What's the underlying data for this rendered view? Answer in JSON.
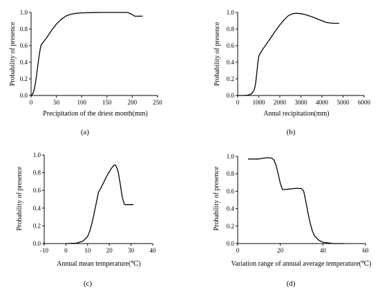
{
  "chart_data": [
    {
      "type": "line",
      "panel_label": "(a)",
      "xlabel": "Precipitation of the driest month(mm)",
      "ylabel": "Probability of presence",
      "xlim": [
        0,
        250
      ],
      "ylim": [
        0,
        1.0
      ],
      "xticks": [
        0,
        50,
        100,
        150,
        200,
        250
      ],
      "yticks": [
        0.0,
        0.2,
        0.4,
        0.6,
        0.8,
        1.0
      ],
      "grid": false,
      "series": [
        {
          "x": [
            0,
            2,
            4,
            6,
            8,
            10,
            12,
            15,
            18,
            20,
            25,
            30,
            40,
            50,
            60,
            70,
            80,
            90,
            100,
            120,
            140,
            160,
            180,
            190,
            195,
            200,
            205,
            210,
            215,
            220
          ],
          "y": [
            0.0,
            0.01,
            0.03,
            0.07,
            0.13,
            0.21,
            0.3,
            0.44,
            0.56,
            0.61,
            0.65,
            0.69,
            0.78,
            0.86,
            0.92,
            0.96,
            0.98,
            0.99,
            0.995,
            0.998,
            1.0,
            1.0,
            1.0,
            1.0,
            0.99,
            0.975,
            0.955,
            0.955,
            0.955,
            0.955
          ]
        }
      ]
    },
    {
      "type": "line",
      "panel_label": "(b)",
      "xlabel": "Annul recipitation(mm)",
      "ylabel": "Probability of presence",
      "xlim": [
        0,
        6000
      ],
      "ylim": [
        0,
        1.0
      ],
      "xticks": [
        0,
        1000,
        2000,
        3000,
        4000,
        5000,
        6000
      ],
      "yticks": [
        0.0,
        0.2,
        0.4,
        0.6,
        0.8,
        1.0
      ],
      "grid": false,
      "series": [
        {
          "x": [
            0,
            300,
            500,
            650,
            750,
            800,
            850,
            900,
            950,
            1000,
            1050,
            1200,
            1500,
            1800,
            2000,
            2200,
            2400,
            2600,
            2800,
            3000,
            3200,
            3500,
            3800,
            4200,
            4500,
            4800
          ],
          "y": [
            0.0,
            0.0,
            0.005,
            0.02,
            0.05,
            0.08,
            0.14,
            0.25,
            0.38,
            0.47,
            0.5,
            0.56,
            0.67,
            0.78,
            0.85,
            0.91,
            0.96,
            0.985,
            0.99,
            0.985,
            0.975,
            0.95,
            0.92,
            0.88,
            0.87,
            0.87
          ]
        }
      ]
    },
    {
      "type": "line",
      "panel_label": "(c)",
      "xlabel": "Annual mean temperature(℃)",
      "ylabel": "Probability of presence",
      "xlim": [
        -10,
        40
      ],
      "ylim": [
        0,
        1.0
      ],
      "xticks": [
        -10,
        0,
        10,
        20,
        30,
        40
      ],
      "yticks": [
        0.0,
        0.2,
        0.4,
        0.6,
        0.8,
        1.0
      ],
      "grid": false,
      "series": [
        {
          "x": [
            0,
            5,
            8,
            10,
            11,
            12,
            13,
            14,
            15,
            16,
            17,
            18,
            19,
            20,
            21,
            22,
            22.5,
            23,
            24,
            25,
            26,
            27,
            28,
            29,
            30,
            31
          ],
          "y": [
            0.0,
            0.005,
            0.03,
            0.08,
            0.14,
            0.23,
            0.34,
            0.46,
            0.58,
            0.62,
            0.67,
            0.72,
            0.77,
            0.81,
            0.85,
            0.88,
            0.89,
            0.88,
            0.82,
            0.68,
            0.52,
            0.44,
            0.44,
            0.44,
            0.44,
            0.44
          ]
        }
      ]
    },
    {
      "type": "line",
      "panel_label": "(d)",
      "xlabel": "Variation range of annual average temperature(℃)",
      "ylabel": "Probability of presence",
      "xlim": [
        0,
        60
      ],
      "ylim": [
        0,
        1.0
      ],
      "xticks": [
        0,
        20,
        40,
        60
      ],
      "yticks": [
        0.0,
        0.2,
        0.4,
        0.6,
        0.8,
        1.0
      ],
      "grid": false,
      "series": [
        {
          "x": [
            5,
            8,
            10,
            12,
            14,
            16,
            17,
            18,
            19,
            20,
            21,
            22,
            24,
            26,
            28,
            30,
            31,
            32,
            33,
            34,
            35,
            36,
            38,
            40,
            45,
            50
          ],
          "y": [
            0.97,
            0.97,
            0.97,
            0.98,
            0.985,
            0.98,
            0.96,
            0.9,
            0.8,
            0.69,
            0.62,
            0.62,
            0.625,
            0.63,
            0.635,
            0.63,
            0.6,
            0.48,
            0.35,
            0.24,
            0.15,
            0.09,
            0.04,
            0.015,
            0.0,
            0.0
          ]
        }
      ]
    }
  ]
}
